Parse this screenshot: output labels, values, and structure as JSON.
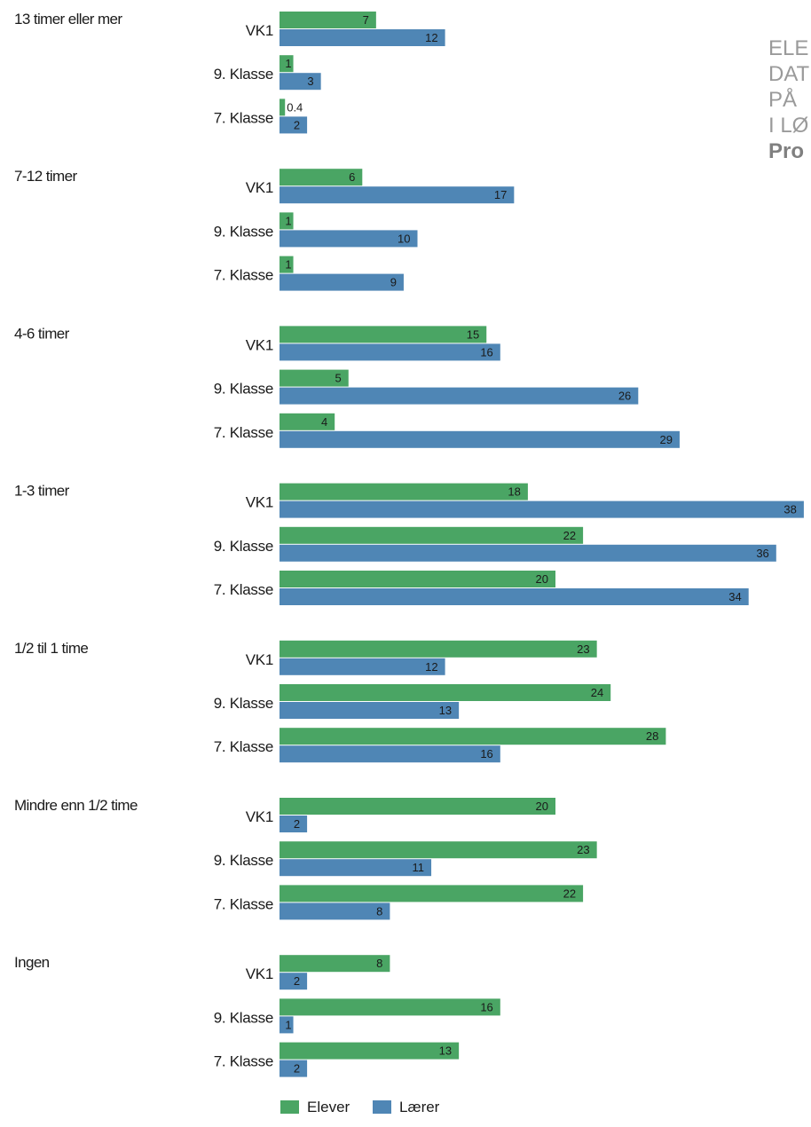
{
  "side_title": {
    "lines": [
      "ELE",
      "DAT",
      "PÅ",
      "I LØ"
    ],
    "bold_line": "Pro"
  },
  "colors": {
    "elever": "#4aa564",
    "laerer": "#4f86b5",
    "text": "#1a1a1a"
  },
  "chart_data": {
    "type": "bar",
    "orientation": "horizontal",
    "grouped": true,
    "groups": [
      {
        "label": "13 timer eller mer",
        "rows": [
          {
            "label": "VK1",
            "elever": 7,
            "laerer": 12
          },
          {
            "label": "9. Klasse",
            "elever": 1,
            "laerer": 3
          },
          {
            "label": "7. Klasse",
            "elever": 0.4,
            "laerer": 2
          }
        ]
      },
      {
        "label": "7-12 timer",
        "rows": [
          {
            "label": "VK1",
            "elever": 6,
            "laerer": 17
          },
          {
            "label": "9. Klasse",
            "elever": 1,
            "laerer": 10
          },
          {
            "label": "7. Klasse",
            "elever": 1,
            "laerer": 9
          }
        ]
      },
      {
        "label": "4-6 timer",
        "rows": [
          {
            "label": "VK1",
            "elever": 15,
            "laerer": 16
          },
          {
            "label": "9. Klasse",
            "elever": 5,
            "laerer": 26
          },
          {
            "label": "7. Klasse",
            "elever": 4,
            "laerer": 29
          }
        ]
      },
      {
        "label": "1-3 timer",
        "rows": [
          {
            "label": "VK1",
            "elever": 18,
            "laerer": 38
          },
          {
            "label": "9. Klasse",
            "elever": 22,
            "laerer": 36
          },
          {
            "label": "7. Klasse",
            "elever": 20,
            "laerer": 34
          }
        ]
      },
      {
        "label": "1/2 til 1 time",
        "rows": [
          {
            "label": "VK1",
            "elever": 23,
            "laerer": 12
          },
          {
            "label": "9. Klasse",
            "elever": 24,
            "laerer": 13
          },
          {
            "label": "7. Klasse",
            "elever": 28,
            "laerer": 16
          }
        ]
      },
      {
        "label": "Mindre enn 1/2 time",
        "rows": [
          {
            "label": "VK1",
            "elever": 20,
            "laerer": 2
          },
          {
            "label": "9. Klasse",
            "elever": 23,
            "laerer": 11
          },
          {
            "label": "7. Klasse",
            "elever": 22,
            "laerer": 8
          }
        ]
      },
      {
        "label": "Ingen",
        "rows": [
          {
            "label": "VK1",
            "elever": 8,
            "laerer": 2
          },
          {
            "label": "9. Klasse",
            "elever": 16,
            "laerer": 1
          },
          {
            "label": "7. Klasse",
            "elever": 13,
            "laerer": 2
          }
        ]
      }
    ],
    "series": [
      {
        "name": "Elever",
        "key": "elever"
      },
      {
        "name": "Lærer",
        "key": "laerer"
      }
    ],
    "legend": "bottom-left",
    "grid": false
  }
}
